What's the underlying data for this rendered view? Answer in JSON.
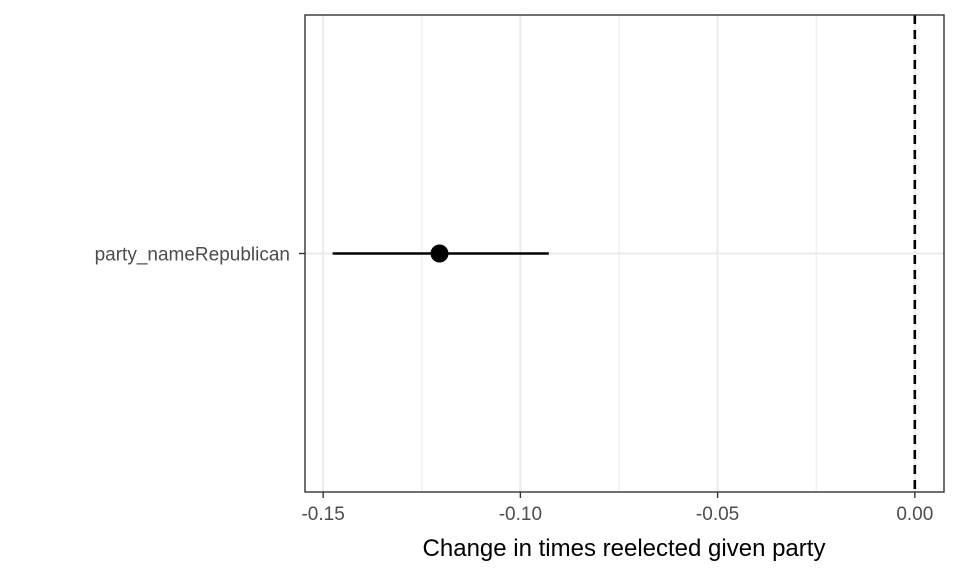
{
  "chart_data": {
    "type": "coefficient-plot",
    "xlabel": "Change in times reelected given party",
    "ylabel": "",
    "xlim": [
      -0.1546,
      0.0074
    ],
    "x_ticks": [
      {
        "value": -0.15,
        "label": "-0.15"
      },
      {
        "value": -0.1,
        "label": "-0.10"
      },
      {
        "value": -0.05,
        "label": "-0.05"
      },
      {
        "value": 0.0,
        "label": "0.00"
      }
    ],
    "x_minor_gridlines": [
      -0.125,
      -0.075,
      -0.025
    ],
    "categories": [
      "party_nameRepublican"
    ],
    "points": [
      {
        "term": "party_nameRepublican",
        "estimate": -0.1205,
        "conf_low": -0.1476,
        "conf_high": -0.0928
      }
    ],
    "reference_line": {
      "x": 0,
      "style": "dashed"
    },
    "grid": true,
    "legend": "none",
    "colors": {
      "point": "#000000",
      "grid": "#ebebeb",
      "panel_border": "#333333",
      "tick_text": "#4d4d4d",
      "reference_line": "#000000"
    }
  }
}
